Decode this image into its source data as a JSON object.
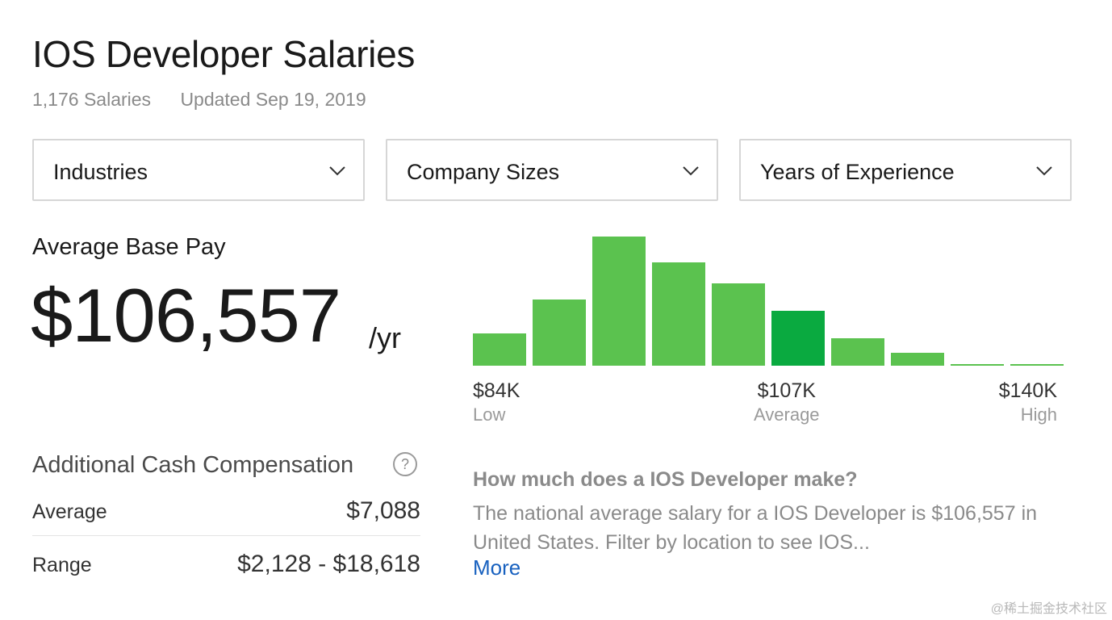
{
  "header": {
    "title": "IOS Developer Salaries",
    "salary_count": "1,176 Salaries",
    "updated": "Updated Sep 19, 2019"
  },
  "filters": [
    {
      "label": "Industries",
      "icon": "chevron-down-icon"
    },
    {
      "label": "Company Sizes",
      "icon": "chevron-down-icon"
    },
    {
      "label": "Years of Experience",
      "icon": "chevron-down-icon"
    }
  ],
  "base_pay": {
    "label": "Average Base Pay",
    "value": "$106,557",
    "unit": "/yr"
  },
  "additional_cash": {
    "title": "Additional Cash Compensation",
    "help_icon": "help-icon",
    "help_glyph": "?",
    "rows": [
      {
        "label": "Average",
        "value": "$7,088"
      },
      {
        "label": "Range",
        "value": "$2,128 - $18,618"
      }
    ]
  },
  "chart_data": {
    "type": "bar",
    "title": "",
    "xlabel": "",
    "ylabel": "",
    "values": [
      40,
      82,
      160,
      128,
      102,
      68,
      34,
      16,
      2,
      2
    ],
    "highlight_index": 5,
    "colors": {
      "bar": "#5bc24f",
      "highlight": "#0aaa40"
    },
    "range_labels": [
      {
        "amount": "$84K",
        "caption": "Low"
      },
      {
        "amount": "$107K",
        "caption": "Average"
      },
      {
        "amount": "$140K",
        "caption": "High"
      }
    ]
  },
  "faq": {
    "question": "How much does a IOS Developer make?",
    "answer": "The national average salary for a IOS Developer is $106,557 in United States. Filter by location to see IOS...",
    "more_label": "More"
  },
  "watermark": "@稀土掘金技术社区"
}
